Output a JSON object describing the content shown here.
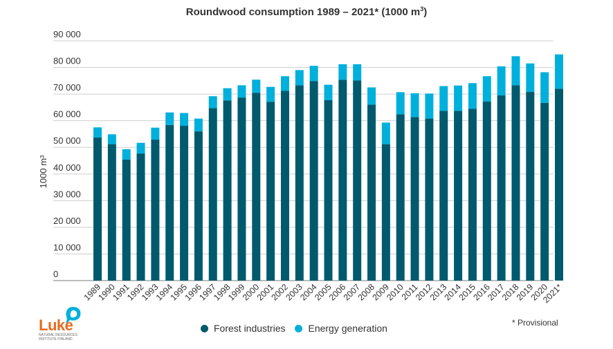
{
  "title": "Roundwood consumption 1989 – 2021* (1000 m",
  "title_sup": "3",
  "title_end": ")",
  "footnote": "* Provisional",
  "logo": {
    "word": "Luke",
    "line1": "NATURAL RESOURCES",
    "line2": "INSTITUTE FINLAND"
  },
  "legend": [
    {
      "label": "Forest industries",
      "color": "#005a6e"
    },
    {
      "label": "Energy generation",
      "color": "#00b0dc"
    }
  ],
  "chart_data": {
    "type": "bar",
    "stacked": true,
    "title": "Roundwood consumption 1989 – 2021* (1000 m³)",
    "ylabel": "1000 m³",
    "ylim": [
      0,
      90000
    ],
    "yticks": [
      "0",
      "10 000",
      "20 000",
      "30 000",
      "40 000",
      "50 000",
      "60 000",
      "70 000",
      "80 000",
      "90 000"
    ],
    "grid": true,
    "categories": [
      "1989",
      "1990",
      "1991",
      "1992",
      "1993",
      "1994",
      "1995",
      "1996",
      "1997",
      "1998",
      "1999",
      "2000",
      "2001",
      "2002",
      "2003",
      "2004",
      "2005",
      "2006",
      "2007",
      "2008",
      "2009",
      "2010",
      "2011",
      "2012",
      "2013",
      "2014",
      "2015",
      "2016",
      "2017",
      "2018",
      "2019",
      "2020",
      "2021*"
    ],
    "series": [
      {
        "name": "Forest industries",
        "color": "#005a6e",
        "values": [
          53700,
          51200,
          45400,
          47700,
          52900,
          58400,
          58100,
          56000,
          64700,
          67600,
          68700,
          70500,
          67100,
          71200,
          73300,
          74900,
          67700,
          75400,
          75100,
          66000,
          51200,
          62400,
          61400,
          60800,
          63700,
          63700,
          64500,
          67200,
          69500,
          73300,
          70800,
          66700,
          72000
        ]
      },
      {
        "name": "Energy generation",
        "color": "#00b0dc",
        "values": [
          3800,
          3700,
          3900,
          4000,
          4500,
          4700,
          4800,
          4800,
          4500,
          4600,
          4600,
          4900,
          5600,
          5500,
          5700,
          5700,
          5800,
          5800,
          6100,
          6500,
          8100,
          8300,
          8900,
          9400,
          9300,
          9500,
          9600,
          9500,
          10900,
          10900,
          10700,
          11500,
          12900
        ]
      }
    ]
  }
}
